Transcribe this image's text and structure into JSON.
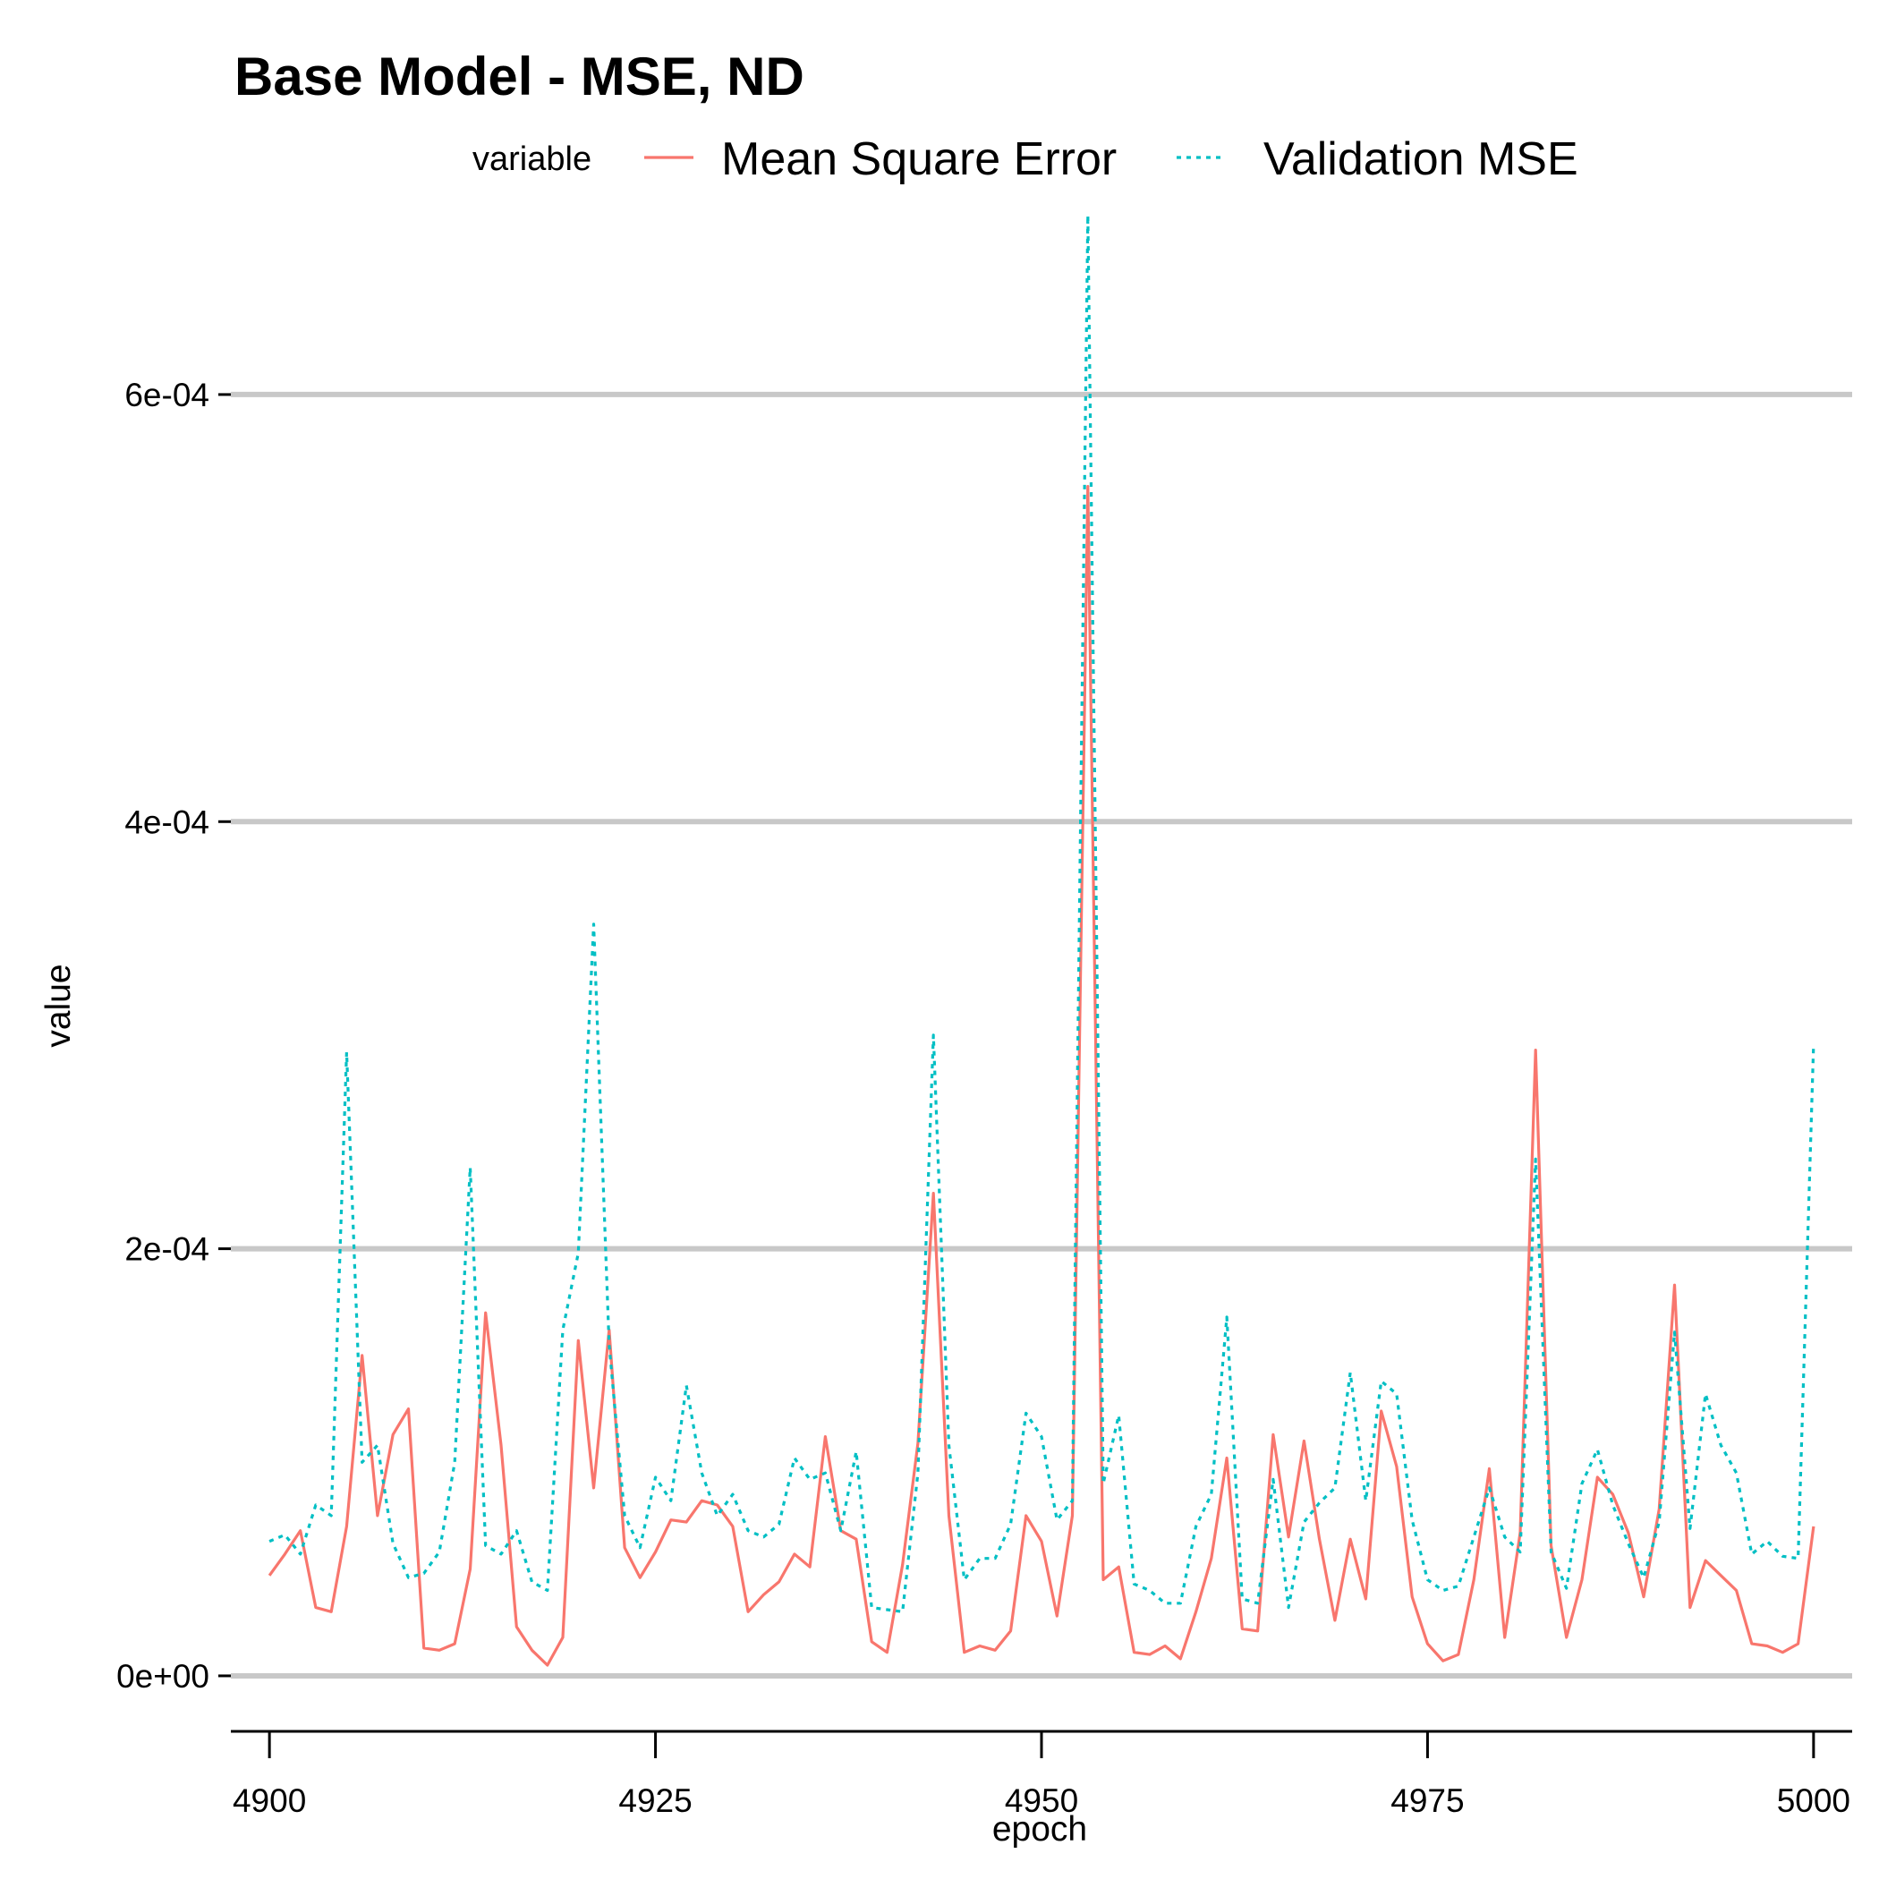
{
  "chart_data": {
    "type": "line",
    "title": "Base Model - MSE, ND",
    "xlabel": "epoch",
    "ylabel": "value",
    "xlim": [
      4897.5,
      5002.5
    ],
    "ylim": [
      -2.6e-05,
      0.00068
    ],
    "xticks": [
      4900,
      4925,
      4950,
      4975,
      5000
    ],
    "xtick_labels": [
      "4900",
      "4925",
      "4950",
      "4975",
      "5000"
    ],
    "yticks": [
      0,
      0.0002,
      0.0004,
      0.0006
    ],
    "ytick_labels": [
      "0e+00",
      "2e-04",
      "4e-04",
      "6e-04"
    ],
    "grid": "horizontal major",
    "legend": {
      "title": "variable",
      "position": "top"
    },
    "x": [
      4900,
      4901,
      4902,
      4903,
      4904,
      4905,
      4906,
      4907,
      4908,
      4909,
      4910,
      4911,
      4912,
      4913,
      4914,
      4915,
      4916,
      4917,
      4918,
      4919,
      4920,
      4921,
      4922,
      4923,
      4924,
      4925,
      4926,
      4927,
      4928,
      4929,
      4930,
      4931,
      4932,
      4933,
      4934,
      4935,
      4936,
      4937,
      4938,
      4939,
      4940,
      4941,
      4942,
      4943,
      4944,
      4945,
      4946,
      4947,
      4948,
      4949,
      4950,
      4951,
      4952,
      4953,
      4954,
      4955,
      4956,
      4957,
      4958,
      4959,
      4960,
      4961,
      4962,
      4963,
      4964,
      4965,
      4966,
      4967,
      4968,
      4969,
      4970,
      4971,
      4972,
      4973,
      4974,
      4975,
      4976,
      4977,
      4978,
      4979,
      4980,
      4981,
      4982,
      4983,
      4984,
      4985,
      4986,
      4987,
      4988,
      4989,
      4990,
      4991,
      4992,
      4993,
      4994,
      4995,
      4996,
      4997,
      4998,
      4999,
      5000
    ],
    "series": [
      {
        "name": "Mean Square Error",
        "color": "#F8766D",
        "linestyle": "solid",
        "values": [
          4.7e-05,
          5.7e-05,
          6.8e-05,
          3.2e-05,
          3e-05,
          7e-05,
          0.00015,
          7.5e-05,
          0.000113,
          0.000125,
          1.3e-05,
          1.2e-05,
          1.5e-05,
          5e-05,
          0.00017,
          0.000108,
          2.3e-05,
          1.2e-05,
          5e-06,
          1.8e-05,
          0.000157,
          8.8e-05,
          0.000162,
          6e-05,
          4.6e-05,
          5.8e-05,
          7.3e-05,
          7.2e-05,
          8.2e-05,
          8e-05,
          7e-05,
          3e-05,
          3.8e-05,
          4.4e-05,
          5.7e-05,
          5.1e-05,
          0.000112,
          6.8e-05,
          6.4e-05,
          1.6e-05,
          1.1e-05,
          5.2e-05,
          0.000109,
          0.000226,
          7.5e-05,
          1.1e-05,
          1.4e-05,
          1.2e-05,
          2.1e-05,
          7.5e-05,
          6.3e-05,
          2.8e-05,
          7.5e-05,
          0.000557,
          4.5e-05,
          5.1e-05,
          1.1e-05,
          1e-05,
          1.4e-05,
          8e-06,
          3e-05,
          5.5e-05,
          0.000102,
          2.2e-05,
          2.1e-05,
          0.000113,
          6.5e-05,
          0.00011,
          6.4e-05,
          2.6e-05,
          6.4e-05,
          3.6e-05,
          0.000124,
          9.8e-05,
          3.7e-05,
          1.5e-05,
          7e-06,
          1e-05,
          4.5e-05,
          9.7e-05,
          1.8e-05,
          6.7e-05,
          0.000293,
          6.1e-05,
          1.8e-05,
          4.5e-05,
          9.3e-05,
          8.5e-05,
          6.7e-05,
          3.7e-05,
          7.8e-05,
          0.000183,
          3.2e-05,
          5.4e-05,
          4.7e-05,
          4e-05,
          1.5e-05,
          1.4e-05,
          1.1e-05,
          1.5e-05,
          7e-05
        ]
      },
      {
        "name": "Validation MSE",
        "color": "#00BFC4",
        "linestyle": "dotted",
        "values": [
          6.3e-05,
          6.6e-05,
          5.7e-05,
          8e-05,
          7.5e-05,
          0.000292,
          0.0001,
          0.000108,
          6.2e-05,
          4.6e-05,
          4.8e-05,
          5.8e-05,
          0.0001,
          0.000238,
          6.1e-05,
          5.7e-05,
          6.8e-05,
          4.4e-05,
          4e-05,
          0.000162,
          0.000198,
          0.000352,
          0.000155,
          7.5e-05,
          6e-05,
          9.3e-05,
          8.2e-05,
          0.000136,
          9.5e-05,
          7.5e-05,
          8.5e-05,
          6.8e-05,
          6.5e-05,
          7.1e-05,
          0.000102,
          9.2e-05,
          9.5e-05,
          6.8e-05,
          0.000105,
          3.2e-05,
          3.1e-05,
          3e-05,
          9.5e-05,
          0.0003,
          0.000108,
          4.5e-05,
          5.5e-05,
          5.5e-05,
          7.1e-05,
          0.000123,
          0.000112,
          7.3e-05,
          8.2e-05,
          0.000684,
          9e-05,
          0.000122,
          4.3e-05,
          4e-05,
          3.4e-05,
          3.4e-05,
          7e-05,
          8.5e-05,
          0.000168,
          3.6e-05,
          3.4e-05,
          9.2e-05,
          3.2e-05,
          7.2e-05,
          8.1e-05,
          8.8e-05,
          0.000142,
          8.2e-05,
          0.000138,
          0.000132,
          7.3e-05,
          4.5e-05,
          4e-05,
          4.2e-05,
          6.5e-05,
          8.8e-05,
          6.5e-05,
          5.8e-05,
          0.000242,
          5.8e-05,
          4.1e-05,
          9e-05,
          0.000106,
          8e-05,
          6.2e-05,
          4.6e-05,
          7.2e-05,
          0.000161,
          6.9e-05,
          0.000132,
          0.000108,
          9.5e-05,
          5.7e-05,
          6.3e-05,
          5.6e-05,
          5.5e-05,
          0.000296
        ]
      }
    ]
  }
}
